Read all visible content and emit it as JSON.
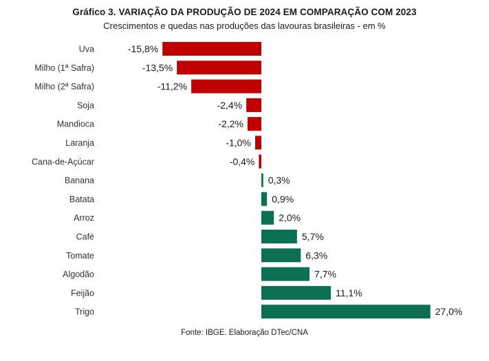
{
  "chart_data": {
    "type": "bar",
    "orientation": "horizontal",
    "title": "Gráfico 3. VARIAÇÃO DA PRODUÇÃO DE 2024 EM COMPARAÇÃO COM 2023",
    "subtitle": "Crescimentos e quedas nas produções das lavouras brasileiras - em %",
    "categories": [
      "Uva",
      "Milho (1ª Safra)",
      "Milho (2ª Safra)",
      "Soja",
      "Mandioca",
      "Laranja",
      "Cana-de-Açúcar",
      "Banana",
      "Batata",
      "Arroz",
      "Café",
      "Tomate",
      "Algodão",
      "Feijão",
      "Trigo"
    ],
    "values": [
      -15.8,
      -13.5,
      -11.2,
      -2.4,
      -2.2,
      -1.0,
      -0.4,
      0.3,
      0.9,
      2.0,
      5.7,
      6.3,
      7.7,
      11.1,
      27.0
    ],
    "value_labels": [
      "-15,8%",
      "-13,5%",
      "-11,2%",
      "-2,4%",
      "-2,2%",
      "-1,0%",
      "-0,4%",
      "0,3%",
      "0,9%",
      "2,0%",
      "5,7%",
      "6,3%",
      "7,7%",
      "11,1%",
      "27,0%"
    ],
    "colors": {
      "negative": "#C00000",
      "positive": "#0B7052"
    },
    "xlim": [
      -16,
      27
    ],
    "grid": false,
    "legend": "none"
  },
  "footer": {
    "source": "Fonte: IBGE. Elaboração DTec/CNA"
  }
}
